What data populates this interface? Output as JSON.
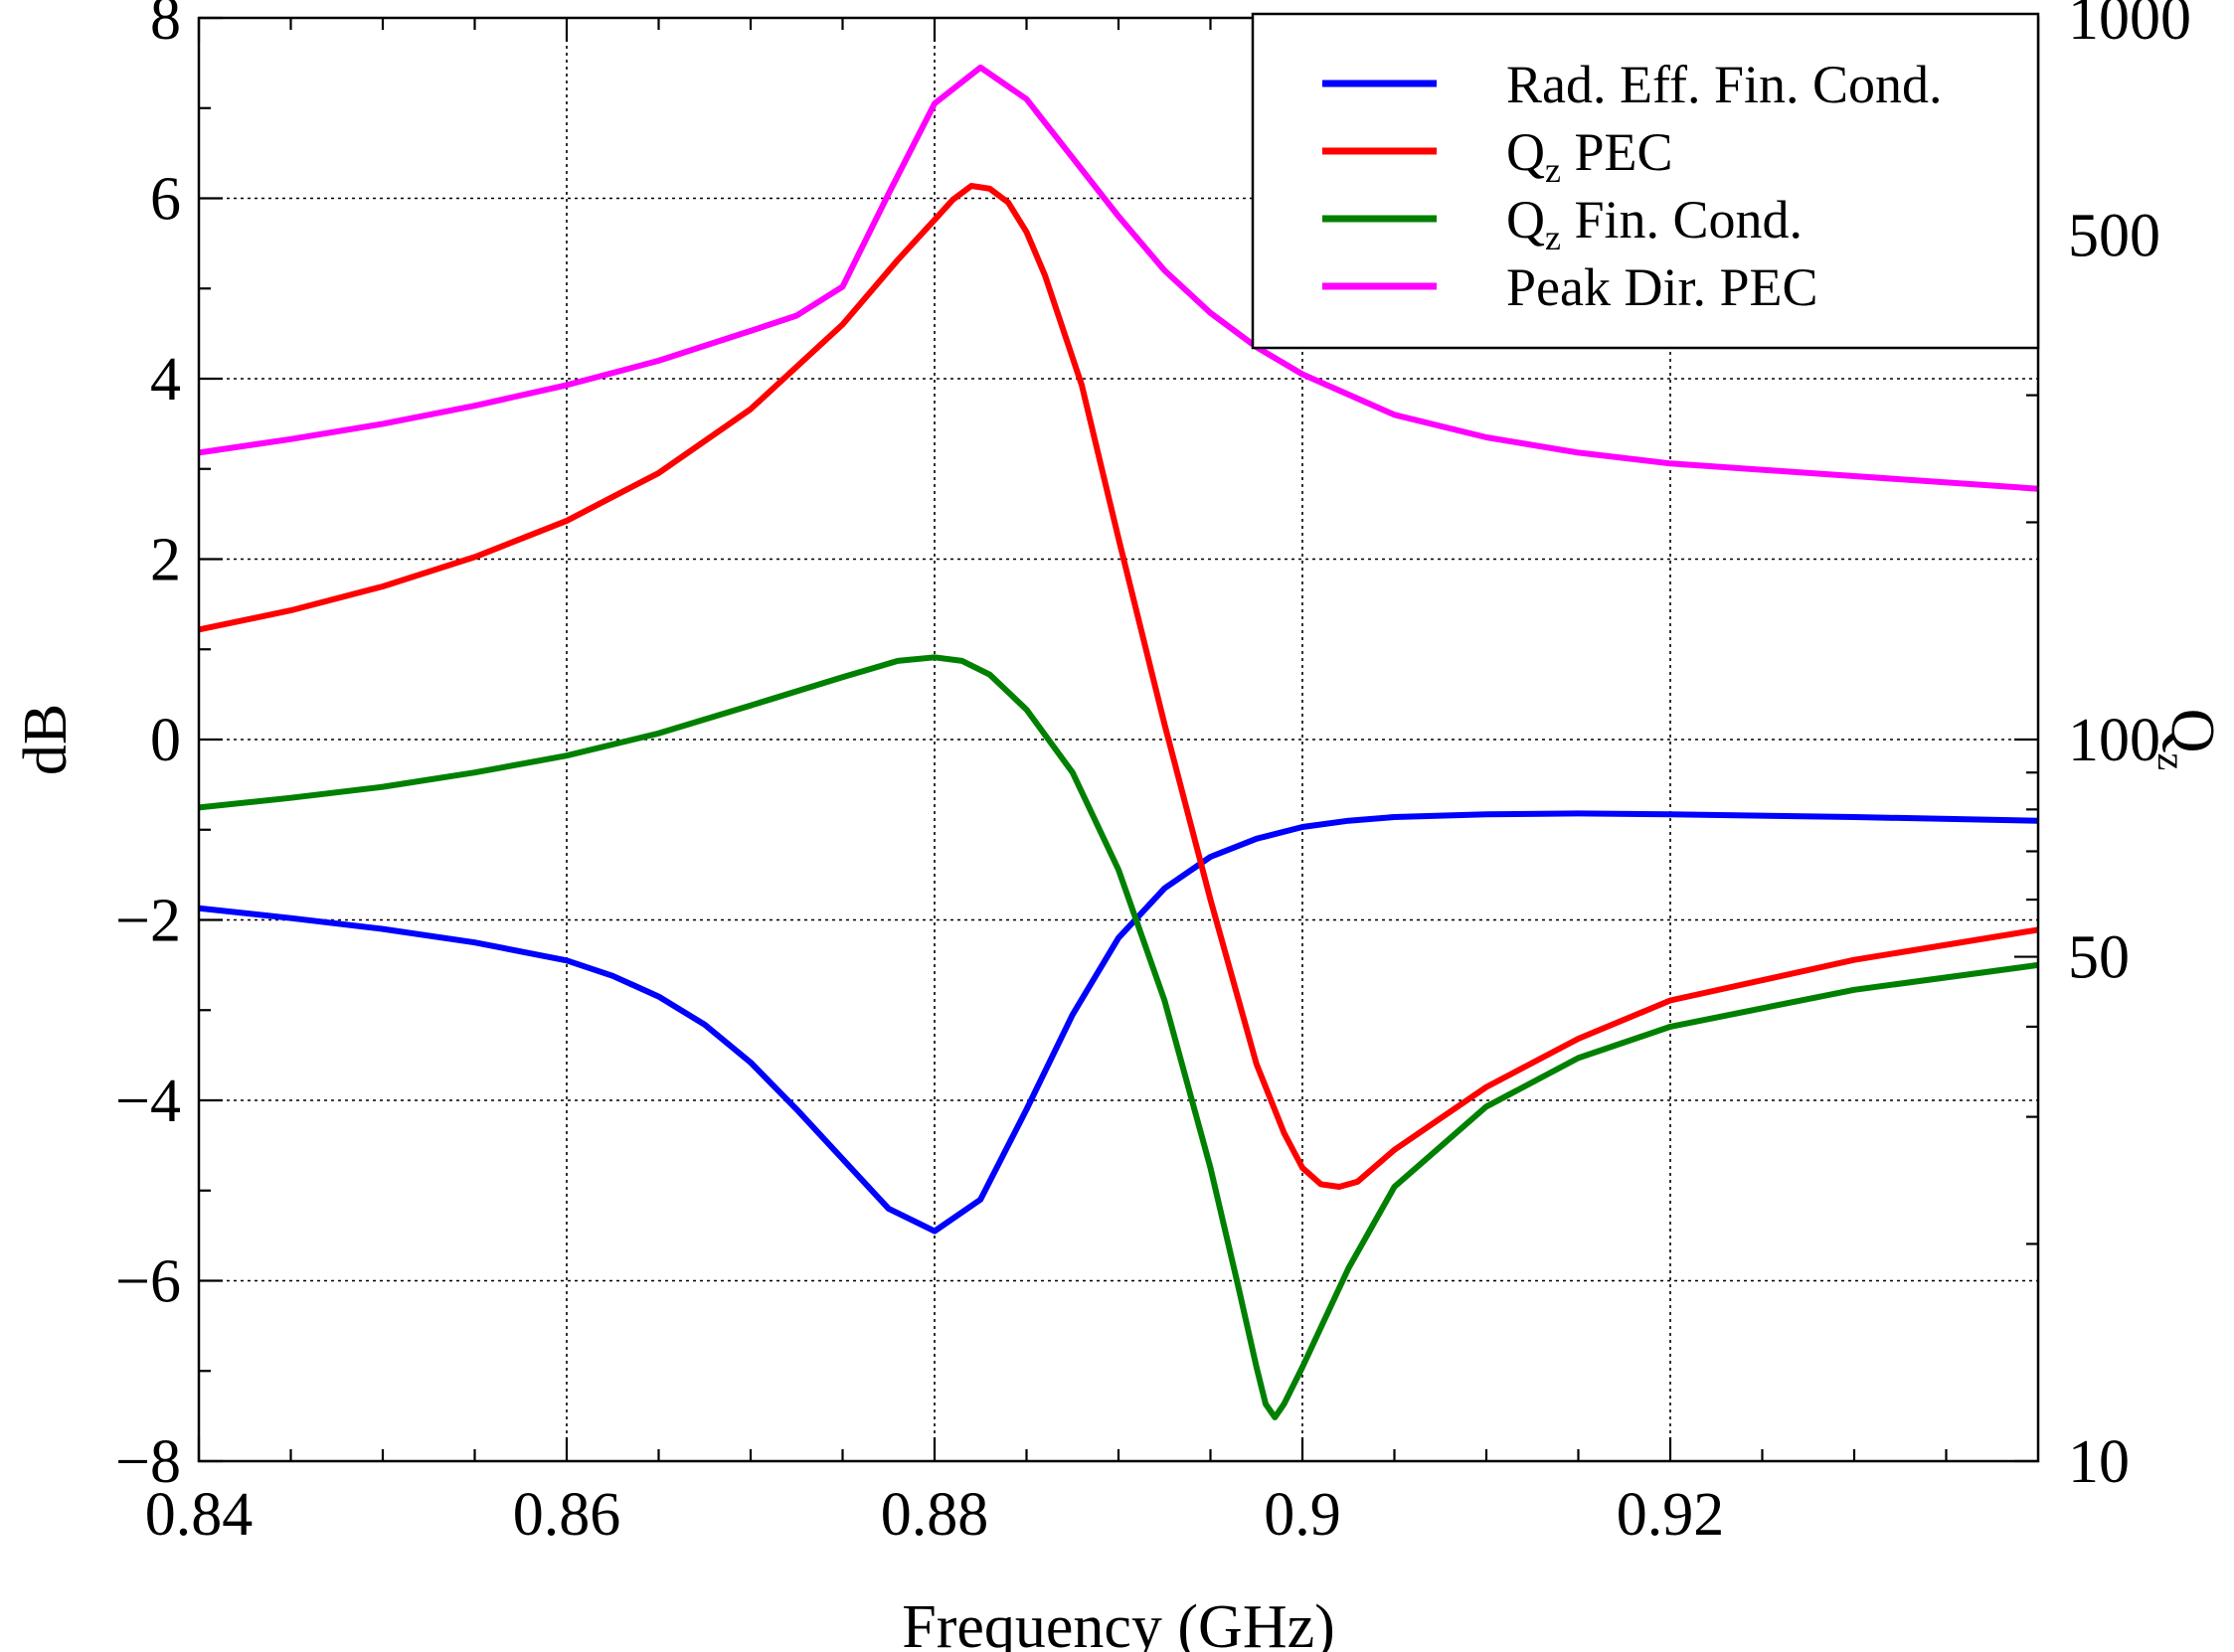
{
  "chart_data": {
    "type": "line",
    "xlabel": "Frequency (GHz)",
    "ylabel_left": "dB",
    "ylabel_right": "Q",
    "ylabel_right_subscript": "z",
    "xlim": [
      0.84,
      0.94
    ],
    "ylim_left": [
      -8,
      8
    ],
    "ylim_right": [
      10,
      1000
    ],
    "right_axis_scale": "log",
    "x_ticks": [
      0.84,
      0.86,
      0.88,
      0.9,
      0.92
    ],
    "x_tick_labels": [
      "0.84",
      "0.86",
      "0.88",
      "0.9",
      "0.92"
    ],
    "y_left_ticks": [
      -8,
      -6,
      -4,
      -2,
      0,
      2,
      4,
      6,
      8
    ],
    "y_left_tick_labels": [
      "−8",
      "−6",
      "−4",
      "−2",
      "0",
      "2",
      "4",
      "6",
      "8"
    ],
    "y_right_ticks": [
      10,
      50,
      100,
      500,
      1000
    ],
    "y_right_tick_labels": [
      "10",
      "50",
      "100",
      "500",
      "1000"
    ],
    "grid": true,
    "legend_position": "top-right",
    "series": [
      {
        "name": "Rad. Eff. Fin. Cond.",
        "legend_main": "Rad. Eff. Fin. Cond.",
        "legend_sub": "",
        "legend_rest": "",
        "color": "#0000ff",
        "axis": "left",
        "x": [
          0.84,
          0.845,
          0.85,
          0.855,
          0.86,
          0.8625,
          0.865,
          0.8675,
          0.87,
          0.8725,
          0.875,
          0.8775,
          0.88,
          0.8825,
          0.885,
          0.8875,
          0.89,
          0.8925,
          0.895,
          0.8975,
          0.9,
          0.9025,
          0.905,
          0.91,
          0.915,
          0.92,
          0.93,
          0.94
        ],
        "y": [
          -1.87,
          -1.98,
          -2.1,
          -2.25,
          -2.45,
          -2.62,
          -2.85,
          -3.16,
          -3.58,
          -4.1,
          -4.65,
          -5.2,
          -5.45,
          -5.1,
          -4.1,
          -3.05,
          -2.2,
          -1.65,
          -1.3,
          -1.1,
          -0.97,
          -0.9,
          -0.86,
          -0.83,
          -0.82,
          -0.83,
          -0.86,
          -0.9
        ]
      },
      {
        "name": "Qz PEC",
        "legend_main": "Q",
        "legend_sub": "z",
        "legend_rest": " PEC",
        "color": "#ff0000",
        "axis": "right",
        "x": [
          0.84,
          0.845,
          0.85,
          0.855,
          0.86,
          0.865,
          0.87,
          0.875,
          0.878,
          0.88,
          0.881,
          0.882,
          0.883,
          0.884,
          0.885,
          0.886,
          0.888,
          0.89,
          0.8925,
          0.895,
          0.8975,
          0.899,
          0.9,
          0.901,
          0.902,
          0.903,
          0.905,
          0.91,
          0.915,
          0.92,
          0.93,
          0.94
        ],
        "y": [
          142,
          151,
          163,
          179,
          201,
          234,
          287,
          376,
          462,
          525,
          560,
          585,
          580,
          555,
          505,
          440,
          310,
          190,
          105,
          60,
          35.5,
          28.5,
          25.5,
          24.2,
          24,
          24.4,
          27,
          33,
          38.5,
          43.5,
          49.5,
          54.5
        ]
      },
      {
        "name": "Qz Fin. Cond.",
        "legend_main": "Q",
        "legend_sub": "z",
        "legend_rest": " Fin. Cond.",
        "color": "#008000",
        "axis": "right",
        "x": [
          0.84,
          0.845,
          0.85,
          0.855,
          0.86,
          0.865,
          0.87,
          0.875,
          0.878,
          0.88,
          0.8815,
          0.883,
          0.885,
          0.8875,
          0.89,
          0.8925,
          0.895,
          0.8965,
          0.8975,
          0.898,
          0.8985,
          0.899,
          0.9,
          0.9025,
          0.905,
          0.91,
          0.915,
          0.92,
          0.93,
          0.94
        ],
        "y": [
          80.5,
          83,
          86,
          90,
          95,
          102,
          111.5,
          122,
          128.5,
          130,
          128.5,
          123,
          110,
          90,
          66,
          43.5,
          25.5,
          17.5,
          13.5,
          12,
          11.5,
          12,
          13.5,
          18.5,
          24,
          31,
          36.2,
          40,
          45,
          48.7
        ]
      },
      {
        "name": "Peak Dir. PEC",
        "legend_main": "Peak Dir. PEC",
        "legend_sub": "",
        "legend_rest": "",
        "color": "#ff00ff",
        "axis": "left",
        "x": [
          0.84,
          0.845,
          0.85,
          0.855,
          0.86,
          0.865,
          0.87,
          0.8725,
          0.875,
          0.8775,
          0.88,
          0.8825,
          0.885,
          0.8875,
          0.89,
          0.8925,
          0.895,
          0.8975,
          0.9,
          0.905,
          0.91,
          0.915,
          0.92,
          0.93,
          0.94
        ],
        "y": [
          3.18,
          3.33,
          3.5,
          3.7,
          3.93,
          4.2,
          4.53,
          4.7,
          5.02,
          6.05,
          7.05,
          7.45,
          7.1,
          6.45,
          5.8,
          5.2,
          4.73,
          4.35,
          4.05,
          3.6,
          3.35,
          3.18,
          3.06,
          2.92,
          2.78
        ]
      }
    ]
  }
}
